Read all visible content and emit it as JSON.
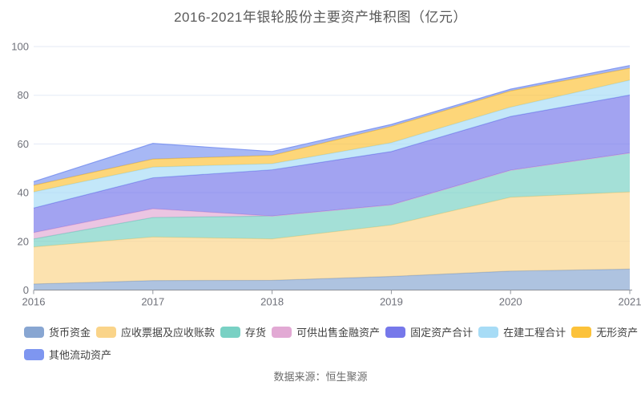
{
  "title": "2016-2021年银轮股份主要资产堆积图（亿元）",
  "source": "数据来源：恒生聚源",
  "chart_data": {
    "type": "area",
    "stacked": true,
    "title": "2016-2021年银轮股份主要资产堆积图（亿元）",
    "unit": "亿元",
    "x": [
      "2016",
      "2017",
      "2018",
      "2019",
      "2020",
      "2021"
    ],
    "series": [
      {
        "name": "货币资金",
        "color": "#88A6D2",
        "values": [
          2.5,
          3.9,
          4.0,
          5.6,
          7.8,
          8.6
        ]
      },
      {
        "name": "应收票据及应收账款",
        "color": "#FAD489",
        "values": [
          15.2,
          17.9,
          17.0,
          21.1,
          30.3,
          31.7
        ]
      },
      {
        "name": "存货",
        "color": "#79D1C4",
        "values": [
          3.3,
          8.0,
          9.4,
          8.3,
          11.1,
          16.0
        ]
      },
      {
        "name": "可供出售金融资产",
        "color": "#E2A9D4",
        "values": [
          2.6,
          3.6,
          0,
          0,
          0,
          0
        ]
      },
      {
        "name": "固定资产合计",
        "color": "#7678EA",
        "values": [
          10.1,
          12.7,
          19.0,
          21.9,
          22.1,
          23.8
        ]
      },
      {
        "name": "在建工程合计",
        "color": "#A7DCF6",
        "values": [
          6.6,
          4.4,
          2.5,
          3.6,
          3.8,
          6.1
        ]
      },
      {
        "name": "无形资产",
        "color": "#FCC23A",
        "values": [
          2.7,
          3.3,
          3.4,
          6.7,
          6.7,
          4.9
        ]
      },
      {
        "name": "其他流动资产",
        "color": "#7E96F0",
        "values": [
          1.5,
          6.4,
          1.6,
          0.8,
          0.7,
          1.1
        ]
      }
    ],
    "totals": [
      44.5,
      60.2,
      56.9,
      68.0,
      82.5,
      92.2
    ],
    "ylim": [
      0,
      100
    ],
    "y_ticks": [
      0,
      20,
      40,
      60,
      80,
      100
    ],
    "grid": true,
    "legend_position": "bottom",
    "colors": {
      "gridline": "#E3EAF6",
      "axis": "#8E939B",
      "tick_label": "#6E7079",
      "fill_opacity": 0.68
    },
    "legend_rows": [
      [
        0,
        1,
        2,
        3,
        4,
        5,
        6
      ],
      [
        7
      ]
    ]
  }
}
